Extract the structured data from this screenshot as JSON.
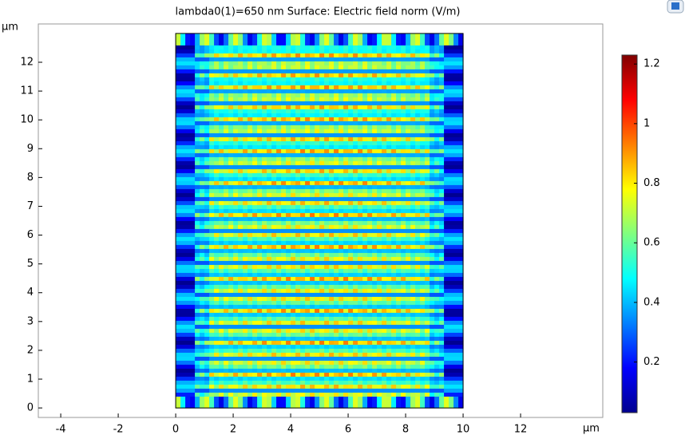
{
  "chart_data": {
    "type": "surface",
    "title": "lambda0(1)=650 nm   Surface: Electric field norm (V/m)",
    "x_unit": "μm",
    "y_unit": "μm",
    "xlim": [
      -4.78,
      14.86
    ],
    "ylim": [
      -0.33,
      13.33
    ],
    "xticks": [
      -4,
      -2,
      0,
      2,
      4,
      6,
      8,
      10,
      12
    ],
    "yticks": [
      0,
      1,
      2,
      3,
      4,
      5,
      6,
      7,
      8,
      9,
      10,
      11,
      12
    ],
    "domain": {
      "x": [
        0,
        10
      ],
      "y": [
        0,
        13
      ]
    },
    "colorbar": {
      "clim": [
        0.03,
        1.23
      ],
      "ticks": [
        0.2,
        0.4,
        0.6,
        0.8,
        1,
        1.2
      ],
      "colormap": "jet"
    }
  }
}
